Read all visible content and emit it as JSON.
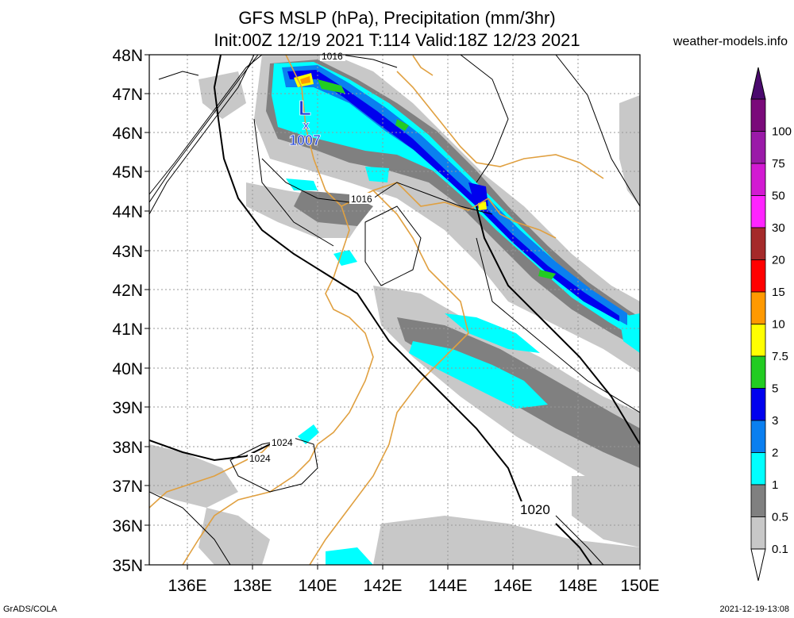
{
  "header": {
    "title_line1": "GFS MSLP (hPa), Precipitation (mm/3hr)",
    "title_line2": "Init:00Z 12/19 2021 T:114 Valid:18Z 12/23 2021",
    "site": "weather-models.info"
  },
  "footer": {
    "left": "GrADS/COLA",
    "right": "2021-12-19-13:08"
  },
  "map": {
    "lat_labels": [
      "48N",
      "47N",
      "46N",
      "45N",
      "44N",
      "43N",
      "42N",
      "41N",
      "40N",
      "39N",
      "38N",
      "37N",
      "36N",
      "35N"
    ],
    "lon_labels": [
      "136E",
      "138E",
      "140E",
      "142E",
      "144E",
      "146E",
      "148E",
      "150E"
    ],
    "low": {
      "symbol": "L",
      "pressure": "1007"
    },
    "isobar_labels": [
      "1016",
      "1016",
      "1024",
      "1024",
      "1020"
    ],
    "colors": {
      "coast": "#e0a040",
      "isobar": "#000000",
      "low_marker": "#1a3fd6"
    }
  },
  "colorbar": {
    "levels": [
      "100",
      "75",
      "50",
      "30",
      "20",
      "15",
      "10",
      "7.5",
      "5",
      "3",
      "2",
      "1",
      "0.5",
      "0.1"
    ],
    "colors": [
      "#7a0a7a",
      "#9a1aa8",
      "#d21ad2",
      "#ff24ff",
      "#a52a2a",
      "#ff0000",
      "#ff9900",
      "#ffff00",
      "#22cc22",
      "#0000ee",
      "#0a7ff0",
      "#00ffff",
      "#808080",
      "#c8c8c8"
    ]
  }
}
